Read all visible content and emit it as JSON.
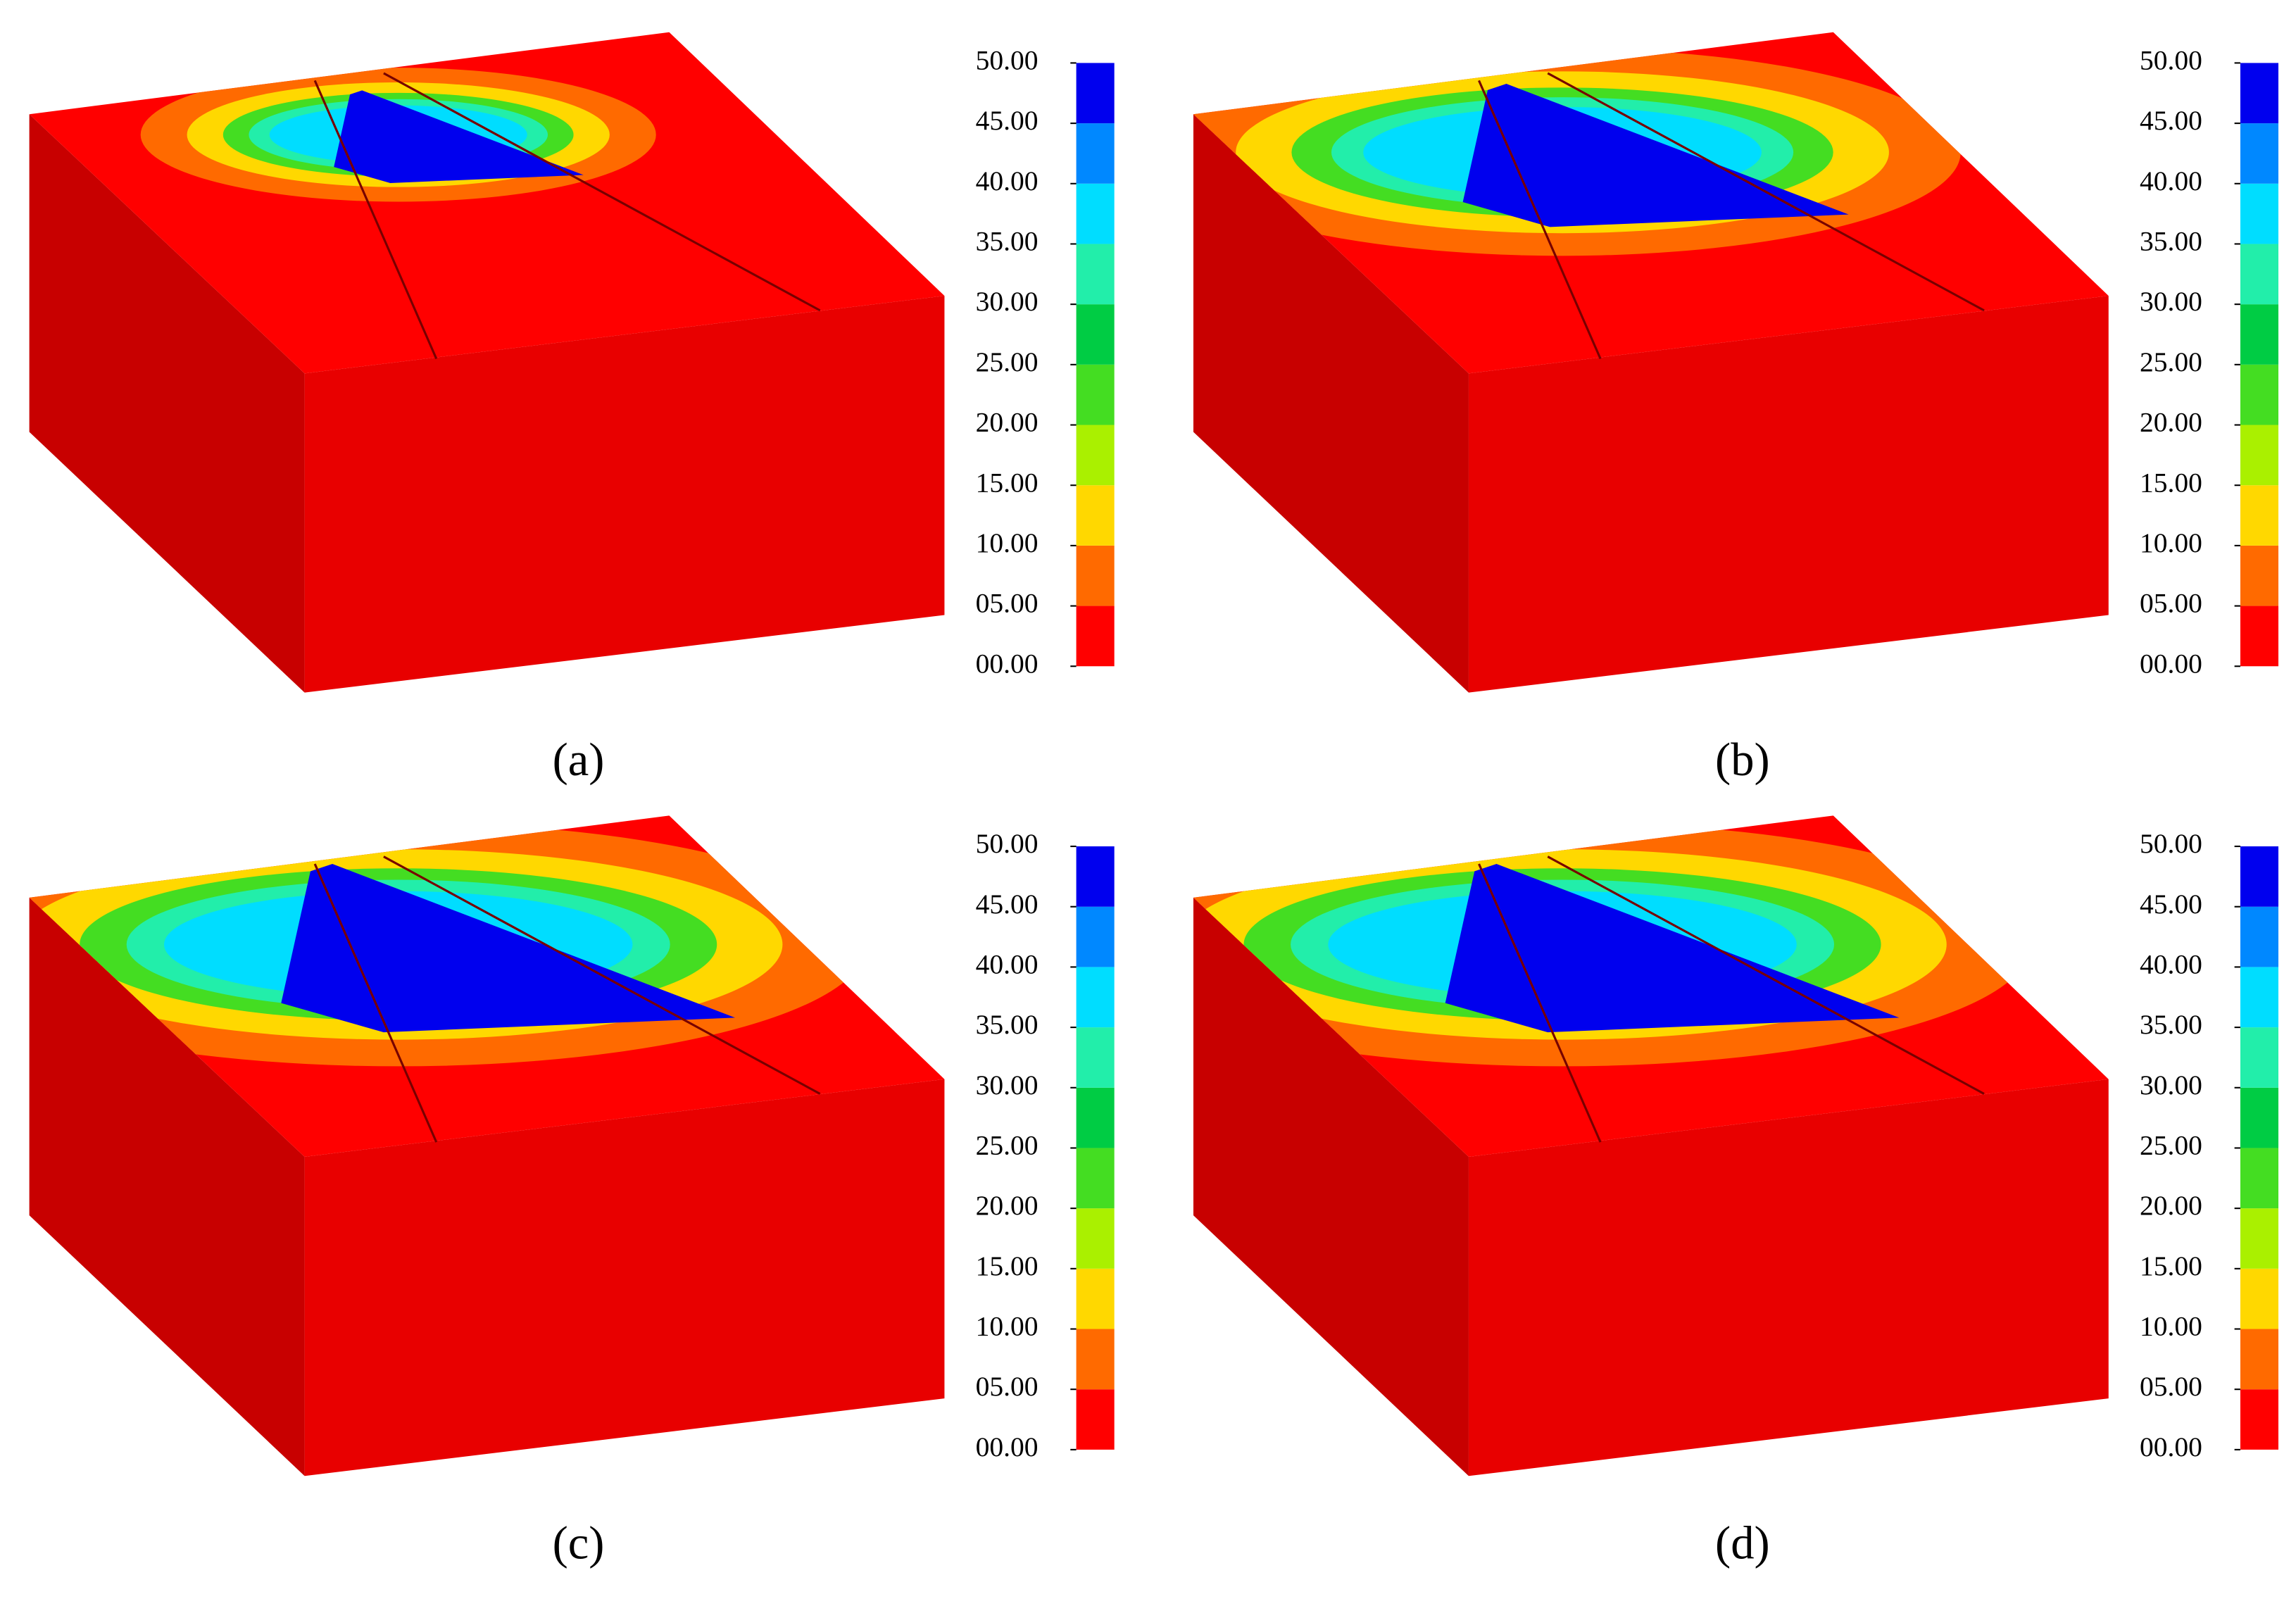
{
  "panels": [
    {
      "label": "(a)"
    },
    {
      "label": "(b)"
    },
    {
      "label": "(c)"
    },
    {
      "label": "(d)"
    }
  ],
  "colorbar": {
    "ticks": [
      {
        "value": 0,
        "label": "00.00"
      },
      {
        "value": 5,
        "label": "05.00"
      },
      {
        "value": 10,
        "label": "10.00"
      },
      {
        "value": 15,
        "label": "15.00"
      },
      {
        "value": 20,
        "label": "20.00"
      },
      {
        "value": 25,
        "label": "25.00"
      },
      {
        "value": 30,
        "label": "30.00"
      },
      {
        "value": 35,
        "label": "35.00"
      },
      {
        "value": 40,
        "label": "40.00"
      },
      {
        "value": 45,
        "label": "45.00"
      },
      {
        "value": 50,
        "label": "50.00"
      }
    ],
    "colors": [
      "#ff0000",
      "#ff6a00",
      "#ffd800",
      "#aaf000",
      "#44dd22",
      "#00cc44",
      "#22eeaa",
      "#00ddff",
      "#0088ff",
      "#0000ee"
    ]
  }
}
